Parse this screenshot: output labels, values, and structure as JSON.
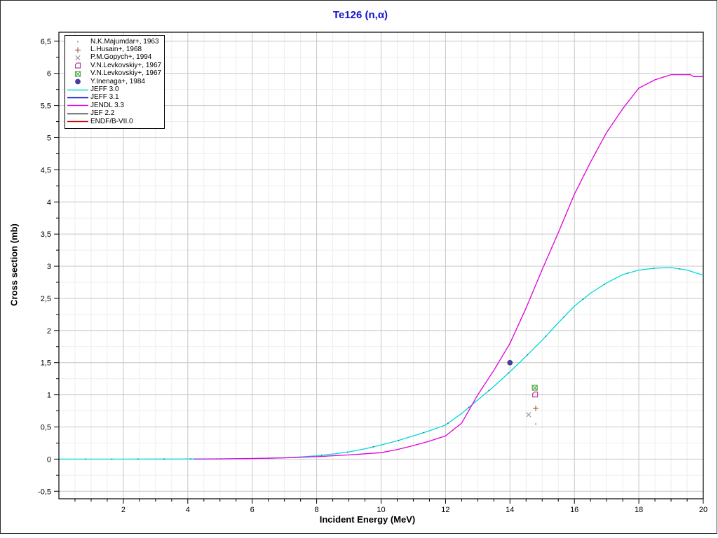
{
  "chart_data": {
    "type": "line",
    "title": "Te126 (n,α)",
    "xlabel": "Incident Energy (MeV)",
    "ylabel": "Cross section (mb)",
    "xlim": [
      0,
      20
    ],
    "ylim": [
      -0.617,
      6.64
    ],
    "grid": true,
    "legend_position": "top-left",
    "colors": {
      "title": "#1414cc",
      "major_grid": "#c6c6c6",
      "minor_grid": "#ededed",
      "frame": "#000000"
    },
    "x_ticks": {
      "major_step": 2,
      "minor_step": 0.5,
      "labels": [
        {
          "v": 2,
          "label": "2"
        },
        {
          "v": 4,
          "label": "4"
        },
        {
          "v": 6,
          "label": "6"
        },
        {
          "v": 8,
          "label": "8"
        },
        {
          "v": 10,
          "label": "10"
        },
        {
          "v": 12,
          "label": "12"
        },
        {
          "v": 14,
          "label": "14"
        },
        {
          "v": 16,
          "label": "16"
        },
        {
          "v": 18,
          "label": "18"
        },
        {
          "v": 20,
          "label": "20"
        }
      ]
    },
    "y_ticks": {
      "major_step": 0.5,
      "minor_step": 0.25,
      "labels": [
        {
          "v": 6.5,
          "label": "6,5"
        },
        {
          "v": 6,
          "label": "6"
        },
        {
          "v": 5.5,
          "label": "5,5"
        },
        {
          "v": 5,
          "label": "5"
        },
        {
          "v": 4.5,
          "label": "4,5"
        },
        {
          "v": 4,
          "label": "4"
        },
        {
          "v": 3.5,
          "label": "3,5"
        },
        {
          "v": 3,
          "label": "3"
        },
        {
          "v": 2.5,
          "label": "2,5"
        },
        {
          "v": 2,
          "label": "2"
        },
        {
          "v": 1.5,
          "label": "1,5"
        },
        {
          "v": 1,
          "label": "1"
        },
        {
          "v": 0.5,
          "label": "0,5"
        },
        {
          "v": 0,
          "label": "0"
        },
        {
          "v": -0.5,
          "label": "-0,5"
        }
      ]
    },
    "series": [
      {
        "label": "JEFF 3.0",
        "color": "#00d9d9",
        "visible": true,
        "overlay_dot_color": "#223a8c",
        "points": [
          [
            0,
            0
          ],
          [
            1,
            0
          ],
          [
            2,
            0
          ],
          [
            3,
            0.001
          ],
          [
            4,
            0.002
          ],
          [
            5,
            0.004
          ],
          [
            5.5,
            0.006
          ],
          [
            6,
            0.009
          ],
          [
            6.5,
            0.013
          ],
          [
            7,
            0.02
          ],
          [
            7.5,
            0.033
          ],
          [
            8,
            0.052
          ],
          [
            8.5,
            0.078
          ],
          [
            9,
            0.112
          ],
          [
            9.5,
            0.16
          ],
          [
            10,
            0.22
          ],
          [
            10.5,
            0.285
          ],
          [
            11,
            0.36
          ],
          [
            11.5,
            0.44
          ],
          [
            12,
            0.53
          ],
          [
            12.5,
            0.71
          ],
          [
            13,
            0.92
          ],
          [
            13.5,
            1.13
          ],
          [
            14,
            1.36
          ],
          [
            14.5,
            1.6
          ],
          [
            15,
            1.85
          ],
          [
            15.5,
            2.12
          ],
          [
            16,
            2.38
          ],
          [
            16.5,
            2.58
          ],
          [
            17,
            2.74
          ],
          [
            17.5,
            2.87
          ],
          [
            18,
            2.94
          ],
          [
            18.5,
            2.97
          ],
          [
            19,
            2.98
          ],
          [
            19.5,
            2.94
          ],
          [
            20,
            2.86
          ]
        ]
      },
      {
        "label": "JEFF 3.1",
        "color": "#0000cc",
        "visible": false,
        "points": []
      },
      {
        "label": "JENDL 3.3",
        "color": "#e000e0",
        "visible": true,
        "overlay_dot_color": "#c22255",
        "points": [
          [
            4.2,
            0
          ],
          [
            5,
            0.003
          ],
          [
            6,
            0.009
          ],
          [
            7,
            0.019
          ],
          [
            8,
            0.038
          ],
          [
            9,
            0.065
          ],
          [
            10,
            0.1
          ],
          [
            10.5,
            0.148
          ],
          [
            11,
            0.21
          ],
          [
            11.5,
            0.28
          ],
          [
            12,
            0.36
          ],
          [
            12.5,
            0.56
          ],
          [
            13,
            1.0
          ],
          [
            13.5,
            1.38
          ],
          [
            14,
            1.8
          ],
          [
            14.5,
            2.35
          ],
          [
            15,
            2.95
          ],
          [
            15.5,
            3.52
          ],
          [
            16,
            4.12
          ],
          [
            16.5,
            4.62
          ],
          [
            17,
            5.08
          ],
          [
            17.5,
            5.45
          ],
          [
            18,
            5.77
          ],
          [
            18.5,
            5.9
          ],
          [
            19,
            5.98
          ],
          [
            19.6,
            5.98
          ],
          [
            19.7,
            5.95
          ],
          [
            20,
            5.95
          ]
        ]
      },
      {
        "label": "JEF 2.2",
        "color": "#3a3a3a",
        "visible": false,
        "points": []
      },
      {
        "label": "ENDF/B-VII.0",
        "color": "#cc0000",
        "visible": false,
        "points": []
      }
    ],
    "experimental": [
      {
        "label": "N.K.Majumdar+, 1963",
        "marker": "dot",
        "color": "#9ab0b0",
        "points": [
          [
            14.8,
            0.545
          ]
        ]
      },
      {
        "label": "L.Husain+, 1968",
        "marker": "plus",
        "color": "#a86450",
        "points": [
          [
            14.8,
            0.79
          ]
        ]
      },
      {
        "label": "P.M.Gopych+, 1994",
        "marker": "x",
        "color": "#999999",
        "points": [
          [
            14.58,
            0.69
          ]
        ]
      },
      {
        "label": "V.N.Levkovskiy+, 1967",
        "marker": "open-square",
        "color": "#c43a9e",
        "points": [
          [
            14.78,
            1.005
          ]
        ]
      },
      {
        "label": "V.N.Levkovskiy+, 1967",
        "marker": "crossed-square",
        "color": "#55aa44",
        "points": [
          [
            14.77,
            1.11
          ]
        ]
      },
      {
        "label": "Y.Inenaga+, 1984",
        "marker": "filled-circle",
        "color": "#4a3c99",
        "points": [
          [
            14.0,
            1.5
          ]
        ]
      }
    ]
  }
}
